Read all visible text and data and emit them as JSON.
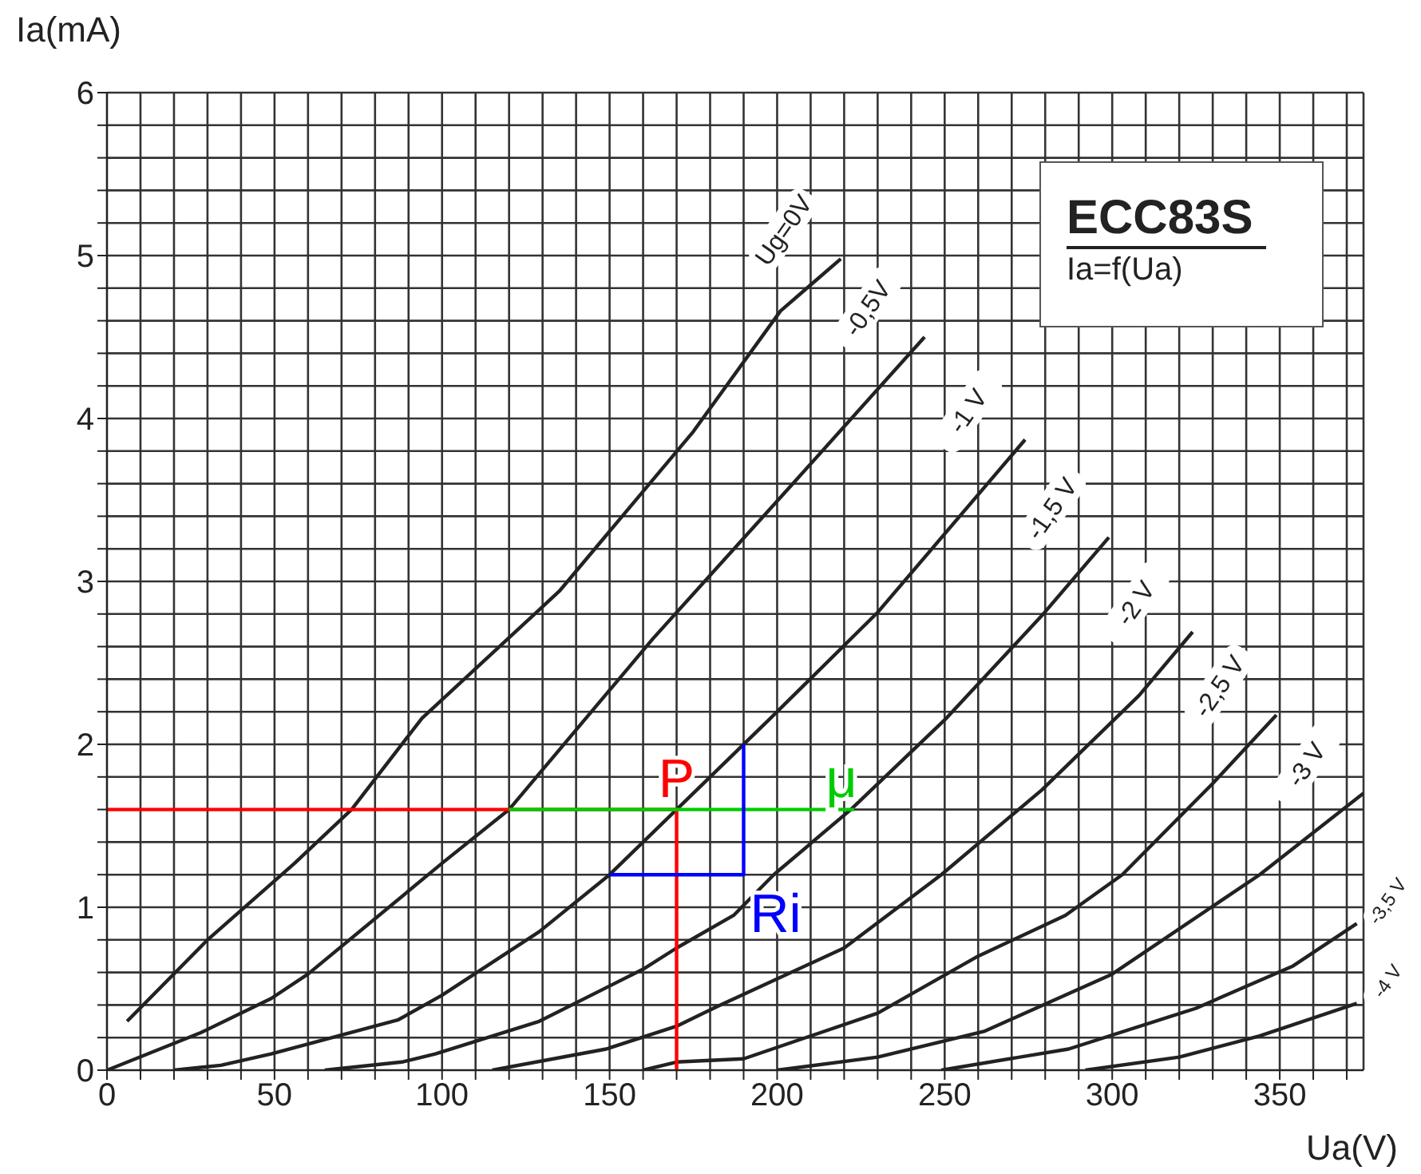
{
  "chart_data": {
    "type": "line",
    "title": "ECC83S",
    "subtitle": "Ia=f(Ua)",
    "xlabel": "Ua(V)",
    "ylabel": "Ia(mA)",
    "xlim": [
      0,
      375
    ],
    "xticks": [
      0,
      {
        "value": 10,
        "label": null
      },
      {
        "value": 20,
        "label": null
      },
      {
        "value": 30,
        "label": null
      },
      {
        "value": 40,
        "label": null
      },
      50,
      {
        "value": 60,
        "label": null
      },
      {
        "value": 70,
        "label": null
      },
      {
        "value": 80,
        "label": null
      },
      {
        "value": 90,
        "label": null
      },
      100,
      {
        "value": 110,
        "label": null
      },
      {
        "value": 120,
        "label": null
      },
      {
        "value": 130,
        "label": null
      },
      {
        "value": 140,
        "label": null
      },
      150,
      {
        "value": 160,
        "label": null
      },
      {
        "value": 170,
        "label": null
      },
      {
        "value": 180,
        "label": null
      },
      {
        "value": 190,
        "label": null
      },
      200,
      {
        "value": 210,
        "label": null
      },
      {
        "value": 220,
        "label": null
      },
      {
        "value": 230,
        "label": null
      },
      {
        "value": 240,
        "label": null
      },
      250,
      {
        "value": 260,
        "label": null
      },
      {
        "value": 270,
        "label": null
      },
      {
        "value": 280,
        "label": null
      },
      {
        "value": 290,
        "label": null
      },
      300,
      {
        "value": 310,
        "label": null
      },
      {
        "value": 320,
        "label": null
      },
      {
        "value": 330,
        "label": null
      },
      {
        "value": 340,
        "label": null
      },
      350,
      {
        "value": 360,
        "label": null
      },
      {
        "value": 370,
        "label": null
      }
    ],
    "ylim": [
      0,
      6
    ],
    "yticks": [
      0,
      {
        "value": 0.2,
        "label": null
      },
      {
        "value": 0.4,
        "label": null
      },
      {
        "value": 0.6,
        "label": null
      },
      {
        "value": 0.8,
        "label": null
      },
      1,
      {
        "value": 1.2,
        "label": null
      },
      {
        "value": 1.4,
        "label": null
      },
      {
        "value": 1.6,
        "label": null
      },
      {
        "value": 1.8,
        "label": null
      },
      2,
      {
        "value": 2.2,
        "label": null
      },
      {
        "value": 2.4,
        "label": null
      },
      {
        "value": 2.6,
        "label": null
      },
      {
        "value": 2.8,
        "label": null
      },
      3,
      {
        "value": 3.2,
        "label": null
      },
      {
        "value": 3.4,
        "label": null
      },
      {
        "value": 3.6,
        "label": null
      },
      {
        "value": 3.8,
        "label": null
      },
      4,
      {
        "value": 4.2,
        "label": null
      },
      {
        "value": 4.4,
        "label": null
      },
      {
        "value": 4.6,
        "label": null
      },
      {
        "value": 4.8,
        "label": null
      },
      5,
      {
        "value": 5.2,
        "label": null
      },
      {
        "value": 5.4,
        "label": null
      },
      {
        "value": 5.6,
        "label": null
      },
      {
        "value": 5.8,
        "label": null
      },
      6
    ],
    "grid": true,
    "marker": "none",
    "line_style": "solid",
    "series": [
      {
        "name": "Ug=0V",
        "color": "#222222",
        "x": [
          6,
          30,
          56,
          73,
          94,
          135,
          175,
          201,
          219
        ],
        "values": [
          0.3,
          0.8,
          1.27,
          1.6,
          2.16,
          2.94,
          3.92,
          4.66,
          4.98
        ]
      },
      {
        "name": "-0,5V",
        "color": "#222222",
        "x": [
          0,
          28,
          49,
          60,
          100,
          120,
          163,
          206,
          244
        ],
        "values": [
          0,
          0.23,
          0.44,
          0.59,
          1.27,
          1.6,
          2.65,
          3.63,
          4.5
        ]
      },
      {
        "name": "-1 V",
        "color": "#222222",
        "x": [
          20,
          34,
          49,
          87,
          100,
          129,
          150,
          170,
          198,
          230,
          274
        ],
        "values": [
          0,
          0.03,
          0.1,
          0.31,
          0.46,
          0.85,
          1.2,
          1.6,
          2.16,
          2.81,
          3.87
        ]
      },
      {
        "name": "-1,5 V",
        "color": "#222222",
        "x": [
          65,
          88,
          98,
          129,
          160,
          170,
          187,
          199,
          222,
          250,
          279,
          299
        ],
        "values": [
          0,
          0.05,
          0.1,
          0.3,
          0.62,
          0.75,
          0.95,
          1.2,
          1.6,
          2.15,
          2.79,
          3.27
        ]
      },
      {
        "name": "-2 V",
        "color": "#222222",
        "x": [
          115,
          149,
          170,
          182,
          220,
          249,
          279,
          308,
          324
        ],
        "values": [
          0,
          0.13,
          0.27,
          0.39,
          0.75,
          1.2,
          1.72,
          2.3,
          2.69
        ]
      },
      {
        "name": "-2,5 V",
        "color": "#222222",
        "x": [
          160,
          170,
          190,
          230,
          260,
          286,
          303,
          330,
          349
        ],
        "values": [
          0,
          0.05,
          0.07,
          0.35,
          0.7,
          0.95,
          1.2,
          1.76,
          2.18
        ]
      },
      {
        "name": "-3 V",
        "color": "#222222",
        "x": [
          200,
          230,
          262,
          300,
          344,
          375
        ],
        "values": [
          0,
          0.08,
          0.24,
          0.59,
          1.2,
          1.7
        ]
      },
      {
        "name": "-3,5 V",
        "color": "#222222",
        "x": [
          249,
          287,
          325,
          354,
          373
        ],
        "values": [
          0,
          0.13,
          0.38,
          0.64,
          0.9
        ]
      },
      {
        "name": "-4 V",
        "color": "#222222",
        "x": [
          292,
          320,
          344,
          373
        ],
        "values": [
          0,
          0.08,
          0.21,
          0.41
        ]
      },
      {
        "color": "#ff0000",
        "x": [
          0,
          170,
          170
        ],
        "values": [
          1.6,
          1.6,
          0
        ]
      },
      {
        "color": "#00cc00",
        "x": [
          120,
          223
        ],
        "values": [
          1.6,
          1.6
        ]
      },
      {
        "color": "#0000ff",
        "x": [
          150,
          190,
          190
        ],
        "values": [
          1.2,
          1.2,
          2.0
        ]
      }
    ],
    "annotations": [
      {
        "text": "P",
        "x": 170,
        "y": 1.6
      },
      {
        "text": "μ",
        "x": 223,
        "y": 1.6
      },
      {
        "text": "Ri",
        "x": 190,
        "y": 1.2
      }
    ]
  }
}
